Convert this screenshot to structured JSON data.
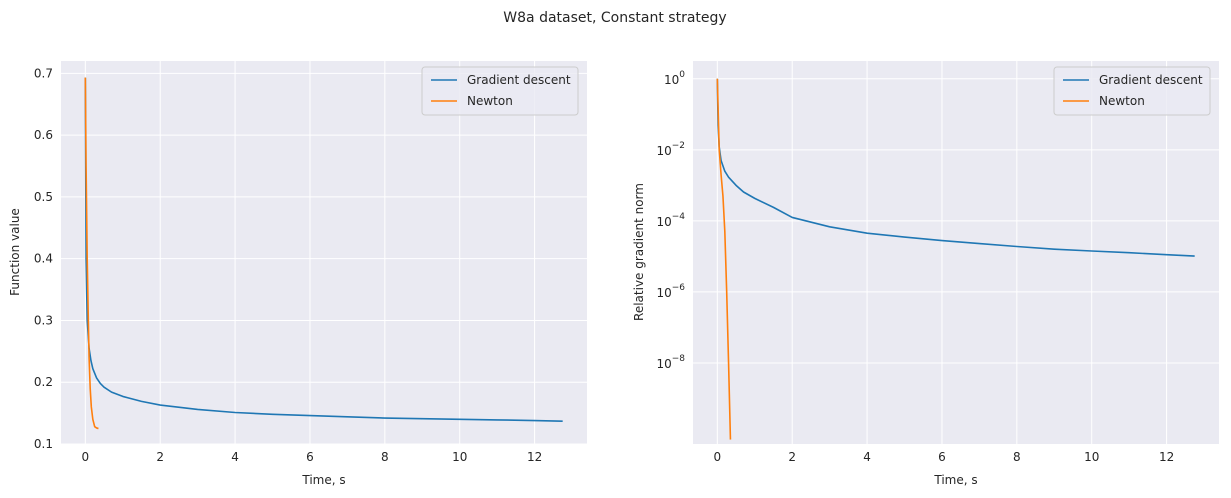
{
  "figure": {
    "title": "W8a dataset, Constant strategy"
  },
  "colors": {
    "axes_bg": "#eaeaf2",
    "grid": "#ffffff",
    "gradient_descent": "#1f77b4",
    "newton": "#ff7f0e"
  },
  "chart_data": [
    {
      "type": "line",
      "title": "",
      "xlabel": "Time, s",
      "ylabel": "Function value",
      "xlim": [
        -0.65,
        13.4
      ],
      "ylim": [
        0.1,
        0.72
      ],
      "yscale": "linear",
      "xticks": [
        0,
        2,
        4,
        6,
        8,
        10,
        12
      ],
      "xtick_labels": [
        "0",
        "2",
        "4",
        "6",
        "8",
        "10",
        "12"
      ],
      "yticks": [
        0.1,
        0.2,
        0.3,
        0.4,
        0.5,
        0.6,
        0.7
      ],
      "ytick_labels": [
        "0.1",
        "0.2",
        "0.3",
        "0.4",
        "0.5",
        "0.6",
        "0.7"
      ],
      "grid": true,
      "legend": "upper right",
      "series": [
        {
          "name": "Gradient descent",
          "color": "#1f77b4",
          "x": [
            0,
            0.02,
            0.05,
            0.1,
            0.15,
            0.2,
            0.3,
            0.4,
            0.5,
            0.7,
            1.0,
            1.5,
            2.0,
            3.0,
            4.0,
            5.0,
            6.0,
            7.0,
            8.0,
            9.0,
            10.0,
            11.0,
            12.0,
            12.75
          ],
          "y": [
            0.693,
            0.4,
            0.3,
            0.255,
            0.235,
            0.222,
            0.207,
            0.198,
            0.192,
            0.184,
            0.177,
            0.169,
            0.163,
            0.156,
            0.151,
            0.148,
            0.146,
            0.144,
            0.142,
            0.141,
            0.14,
            0.139,
            0.138,
            0.137
          ]
        },
        {
          "name": "Newton",
          "color": "#ff7f0e",
          "x": [
            0,
            0.02,
            0.05,
            0.08,
            0.1,
            0.13,
            0.16,
            0.2,
            0.25,
            0.3,
            0.35
          ],
          "y": [
            0.693,
            0.55,
            0.4,
            0.3,
            0.24,
            0.19,
            0.16,
            0.14,
            0.128,
            0.126,
            0.125
          ]
        }
      ]
    },
    {
      "type": "line",
      "title": "",
      "xlabel": "Time, s",
      "ylabel": "Relative gradient norm",
      "xlim": [
        -0.65,
        13.4
      ],
      "ylim_log10": [
        -10.28,
        0.5
      ],
      "yscale": "log",
      "xticks": [
        0,
        2,
        4,
        6,
        8,
        10,
        12
      ],
      "xtick_labels": [
        "0",
        "2",
        "4",
        "6",
        "8",
        "10",
        "12"
      ],
      "yticks_log10": [
        0,
        -2,
        -4,
        -6,
        -8
      ],
      "ytick_base": "10",
      "ytick_exponents": [
        "0",
        "−2",
        "−4",
        "−6",
        "−8"
      ],
      "grid": true,
      "legend": "upper right",
      "series": [
        {
          "name": "Gradient descent",
          "color": "#1f77b4",
          "x": [
            0,
            0.02,
            0.05,
            0.1,
            0.2,
            0.3,
            0.5,
            0.7,
            1.0,
            1.5,
            2.0,
            3.0,
            4.0,
            5.0,
            6.0,
            7.0,
            8.0,
            9.0,
            10.0,
            11.0,
            12.0,
            12.75
          ],
          "y": [
            1.0,
            0.05,
            0.012,
            0.005,
            0.0025,
            0.0017,
            0.001,
            0.00065,
            0.00043,
            0.00024,
            0.000125,
            6.8e-05,
            4.5e-05,
            3.5e-05,
            2.8e-05,
            2.3e-05,
            1.9e-05,
            1.6e-05,
            1.42e-05,
            1.27e-05,
            1.12e-05,
            1.02e-05
          ]
        },
        {
          "name": "Newton",
          "color": "#ff7f0e",
          "x": [
            0,
            0.05,
            0.1,
            0.15,
            0.2,
            0.25,
            0.3,
            0.35
          ],
          "y": [
            1.0,
            0.01,
            0.002,
            0.0005,
            5e-05,
            1e-06,
            1e-08,
            7e-11
          ]
        }
      ]
    }
  ]
}
